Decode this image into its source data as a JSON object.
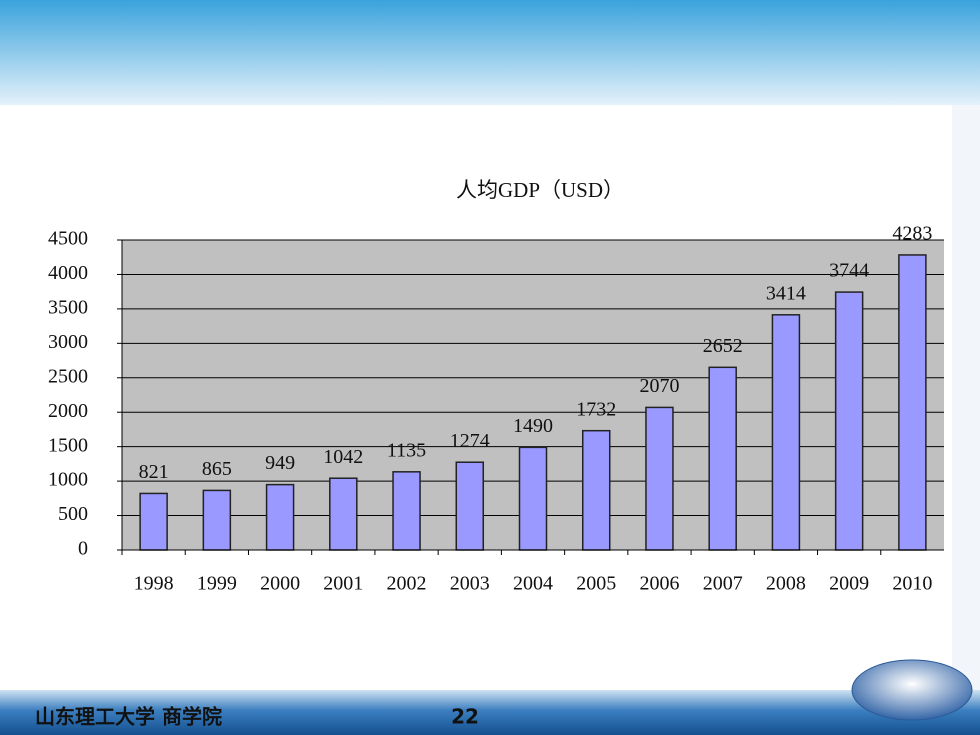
{
  "chart_data": {
    "type": "bar",
    "title": "人均GDP（USD）",
    "categories": [
      "1998",
      "1999",
      "2000",
      "2001",
      "2002",
      "2003",
      "2004",
      "2005",
      "2006",
      "2007",
      "2008",
      "2009",
      "2010"
    ],
    "values": [
      821,
      865,
      949,
      1042,
      1135,
      1274,
      1490,
      1732,
      2070,
      2652,
      3414,
      3744,
      4283
    ],
    "color": "#9999ff",
    "ylim": [
      0,
      4500
    ],
    "yticks": [
      0,
      500,
      1000,
      1500,
      2000,
      2500,
      3000,
      3500,
      4000,
      4500
    ],
    "grid": true
  },
  "footer": {
    "institution": "山东理工大学 商学院",
    "page_number": 22
  }
}
